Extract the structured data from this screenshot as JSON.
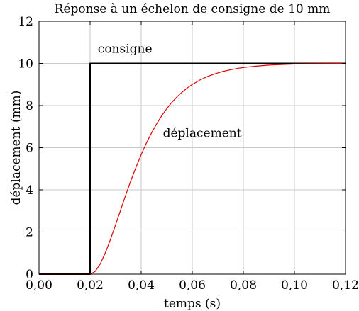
{
  "chart_data": {
    "type": "line",
    "title": "Réponse à un échelon de consigne de 10 mm",
    "xlabel": "temps (s)",
    "ylabel": "déplacement (mm)",
    "xlim": [
      0,
      0.12
    ],
    "ylim": [
      0,
      12
    ],
    "grid": true,
    "xticks": [
      0,
      0.02,
      0.04,
      0.06,
      0.08,
      0.1,
      0.12
    ],
    "xtick_labels": [
      "0,00",
      "0,02",
      "0,04",
      "0,06",
      "0,08",
      "0,10",
      "0,12"
    ],
    "yticks": [
      0,
      2,
      4,
      6,
      8,
      10,
      12
    ],
    "ytick_labels": [
      "0",
      "2",
      "4",
      "6",
      "8",
      "10",
      "12"
    ],
    "series": [
      {
        "name": "consigne",
        "color": "#000000",
        "x": [
          0,
          0.02,
          0.02,
          0.12
        ],
        "y": [
          0,
          0,
          10,
          10
        ]
      },
      {
        "name": "déplacement",
        "color": "#e00000",
        "x": [
          0,
          0.02,
          0.022,
          0.024,
          0.026,
          0.028,
          0.03,
          0.032,
          0.034,
          0.036,
          0.038,
          0.04,
          0.042,
          0.044,
          0.046,
          0.048,
          0.05,
          0.052,
          0.054,
          0.056,
          0.058,
          0.06,
          0.063,
          0.066,
          0.069,
          0.072,
          0.075,
          0.078,
          0.081,
          0.085,
          0.09,
          0.1,
          0.11,
          0.12
        ],
        "y": [
          0,
          0,
          0.13,
          0.49,
          1.02,
          1.66,
          2.35,
          3.06,
          3.77,
          4.45,
          5.08,
          5.67,
          6.21,
          6.69,
          7.12,
          7.51,
          7.85,
          8.15,
          8.41,
          8.63,
          8.83,
          9.0,
          9.21,
          9.38,
          9.51,
          9.62,
          9.7,
          9.77,
          9.82,
          9.87,
          9.92,
          9.97,
          9.99,
          10.0
        ]
      }
    ],
    "annotations": [
      {
        "text": "consigne",
        "x": 0.023,
        "y": 10.5
      },
      {
        "text": "déplacement",
        "x": 0.0485,
        "y": 6.5
      }
    ]
  }
}
